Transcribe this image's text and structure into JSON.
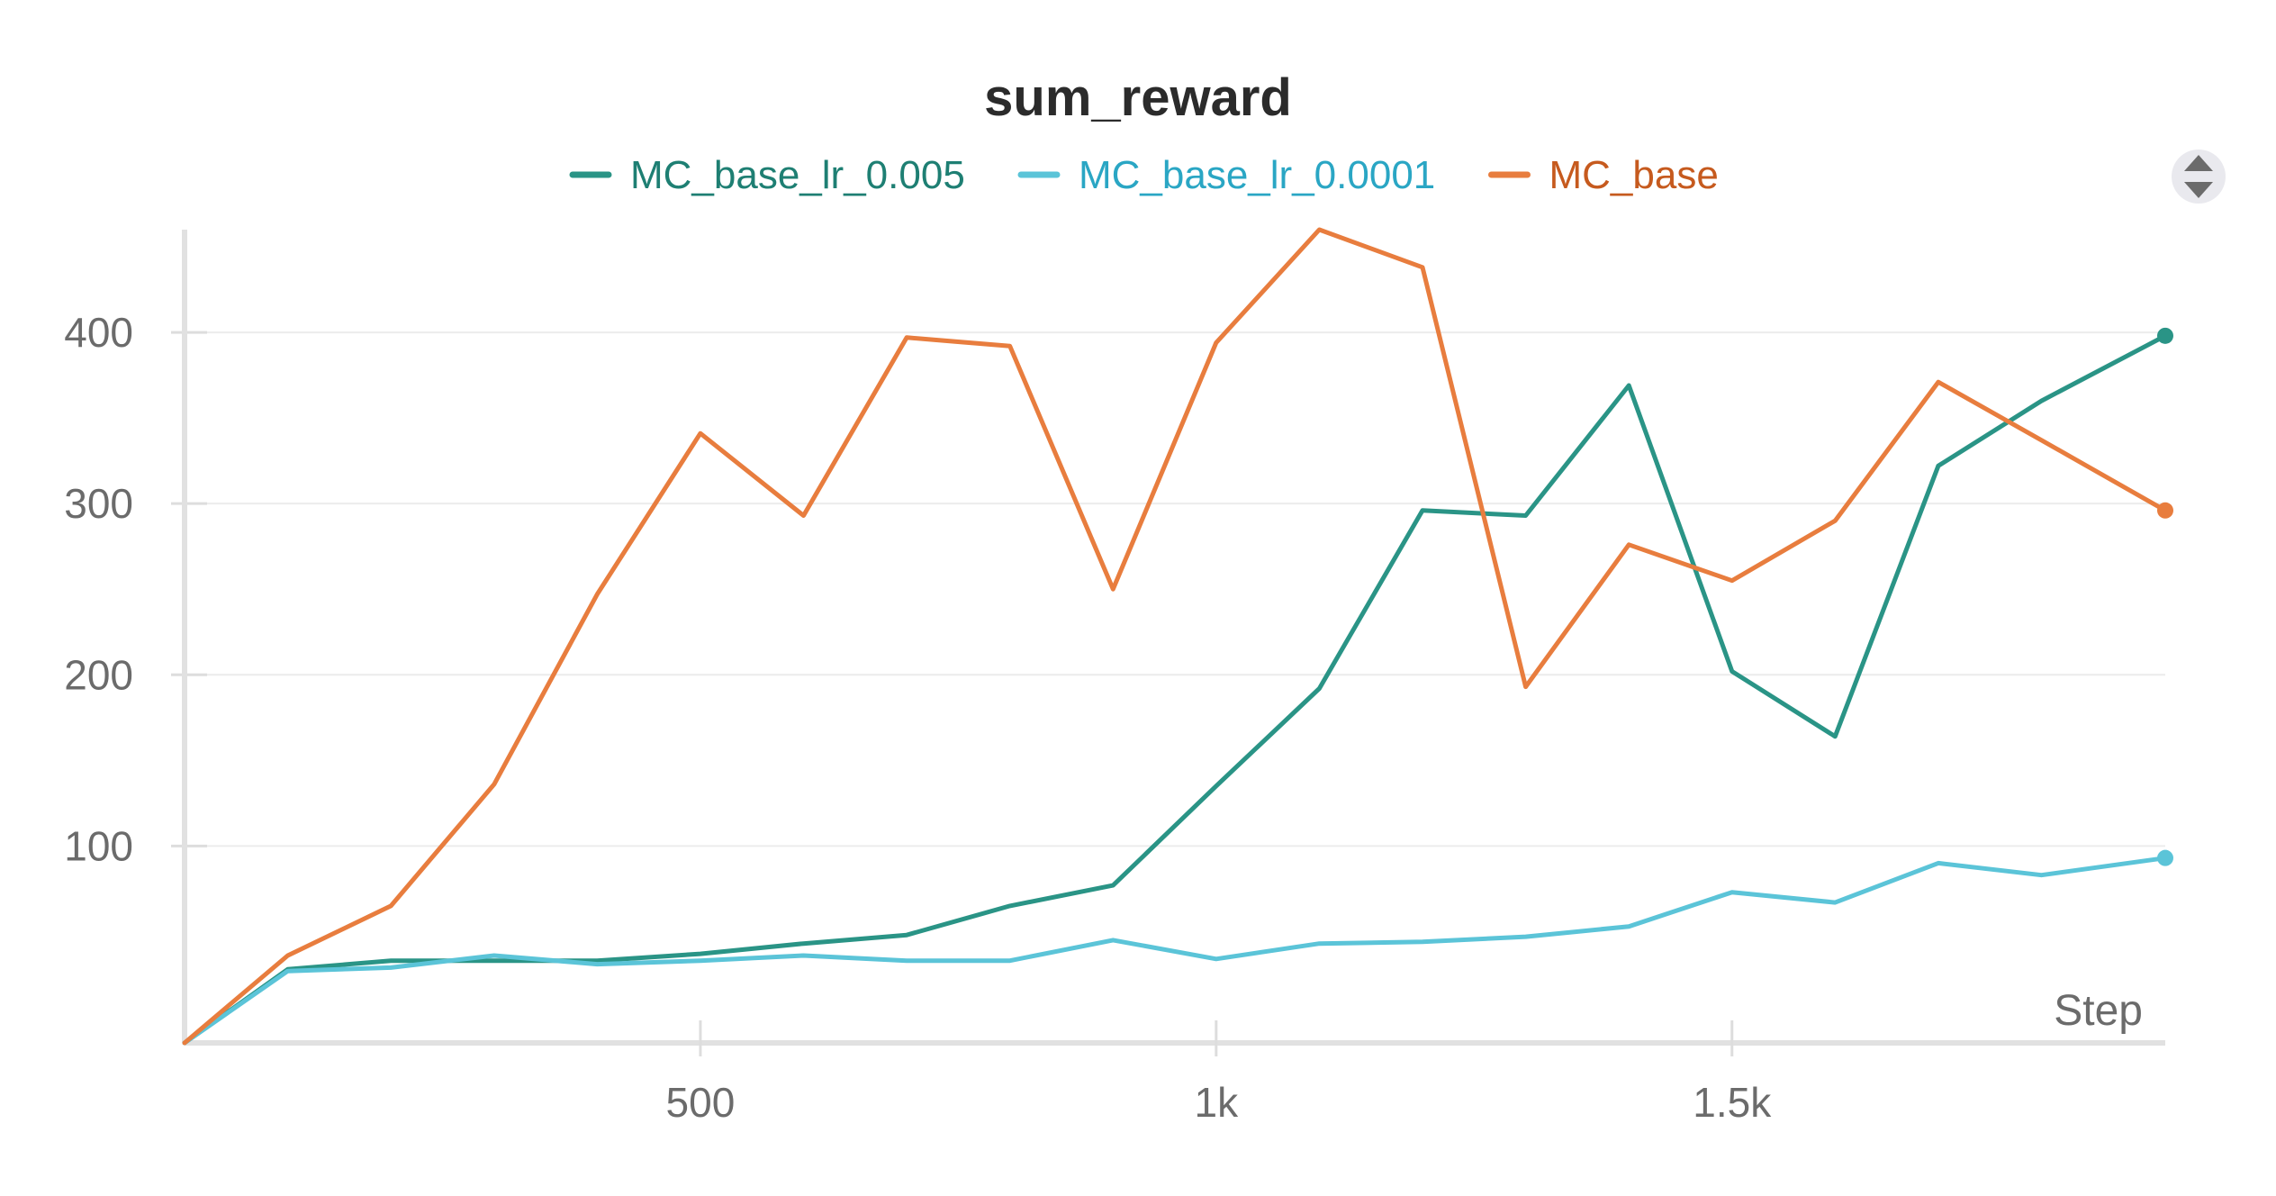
{
  "chart_data": {
    "type": "line",
    "title": "sum_reward",
    "xlabel": "Step",
    "ylabel": "",
    "xlim": [
      0,
      1920
    ],
    "ylim": [
      -15,
      460
    ],
    "x_ticks": [
      {
        "value": 500,
        "label": "500"
      },
      {
        "value": 1000,
        "label": "1k"
      },
      {
        "value": 1500,
        "label": "1.5k"
      }
    ],
    "y_ticks": [
      {
        "value": 100,
        "label": "100"
      },
      {
        "value": 200,
        "label": "200"
      },
      {
        "value": 300,
        "label": "300"
      },
      {
        "value": 400,
        "label": "400"
      }
    ],
    "grid": true,
    "legend_position": "top",
    "x": [
      0,
      100,
      200,
      300,
      400,
      500,
      600,
      700,
      800,
      900,
      1000,
      1100,
      1200,
      1300,
      1400,
      1500,
      1600,
      1700,
      1800,
      1920
    ],
    "series": [
      {
        "name": "MC_base_lr_0.005",
        "color": "#2a9486",
        "values": [
          -15,
          28,
          33,
          33,
          33,
          37,
          43,
          48,
          65,
          77,
          135,
          192,
          296,
          293,
          369,
          202,
          164,
          322,
          360,
          398
        ]
      },
      {
        "name": "MC_base_lr_0.0001",
        "color": "#5bc4d8",
        "values": [
          -15,
          27,
          29,
          36,
          31,
          33,
          36,
          33,
          33,
          45,
          34,
          43,
          44,
          47,
          53,
          73,
          67,
          90,
          83,
          93
        ]
      },
      {
        "name": "MC_base",
        "color": "#e87d3e",
        "values": [
          -15,
          36,
          65,
          136,
          247,
          341,
          293,
          397,
          392,
          250,
          394,
          460,
          438,
          193,
          276,
          255,
          290,
          371,
          337,
          296
        ]
      }
    ],
    "legend_text_colors": [
      "#1e7f73",
      "#2aa6c4",
      "#c65a1e"
    ]
  },
  "toolbar": {
    "icon": "reorder-arrows-icon"
  }
}
